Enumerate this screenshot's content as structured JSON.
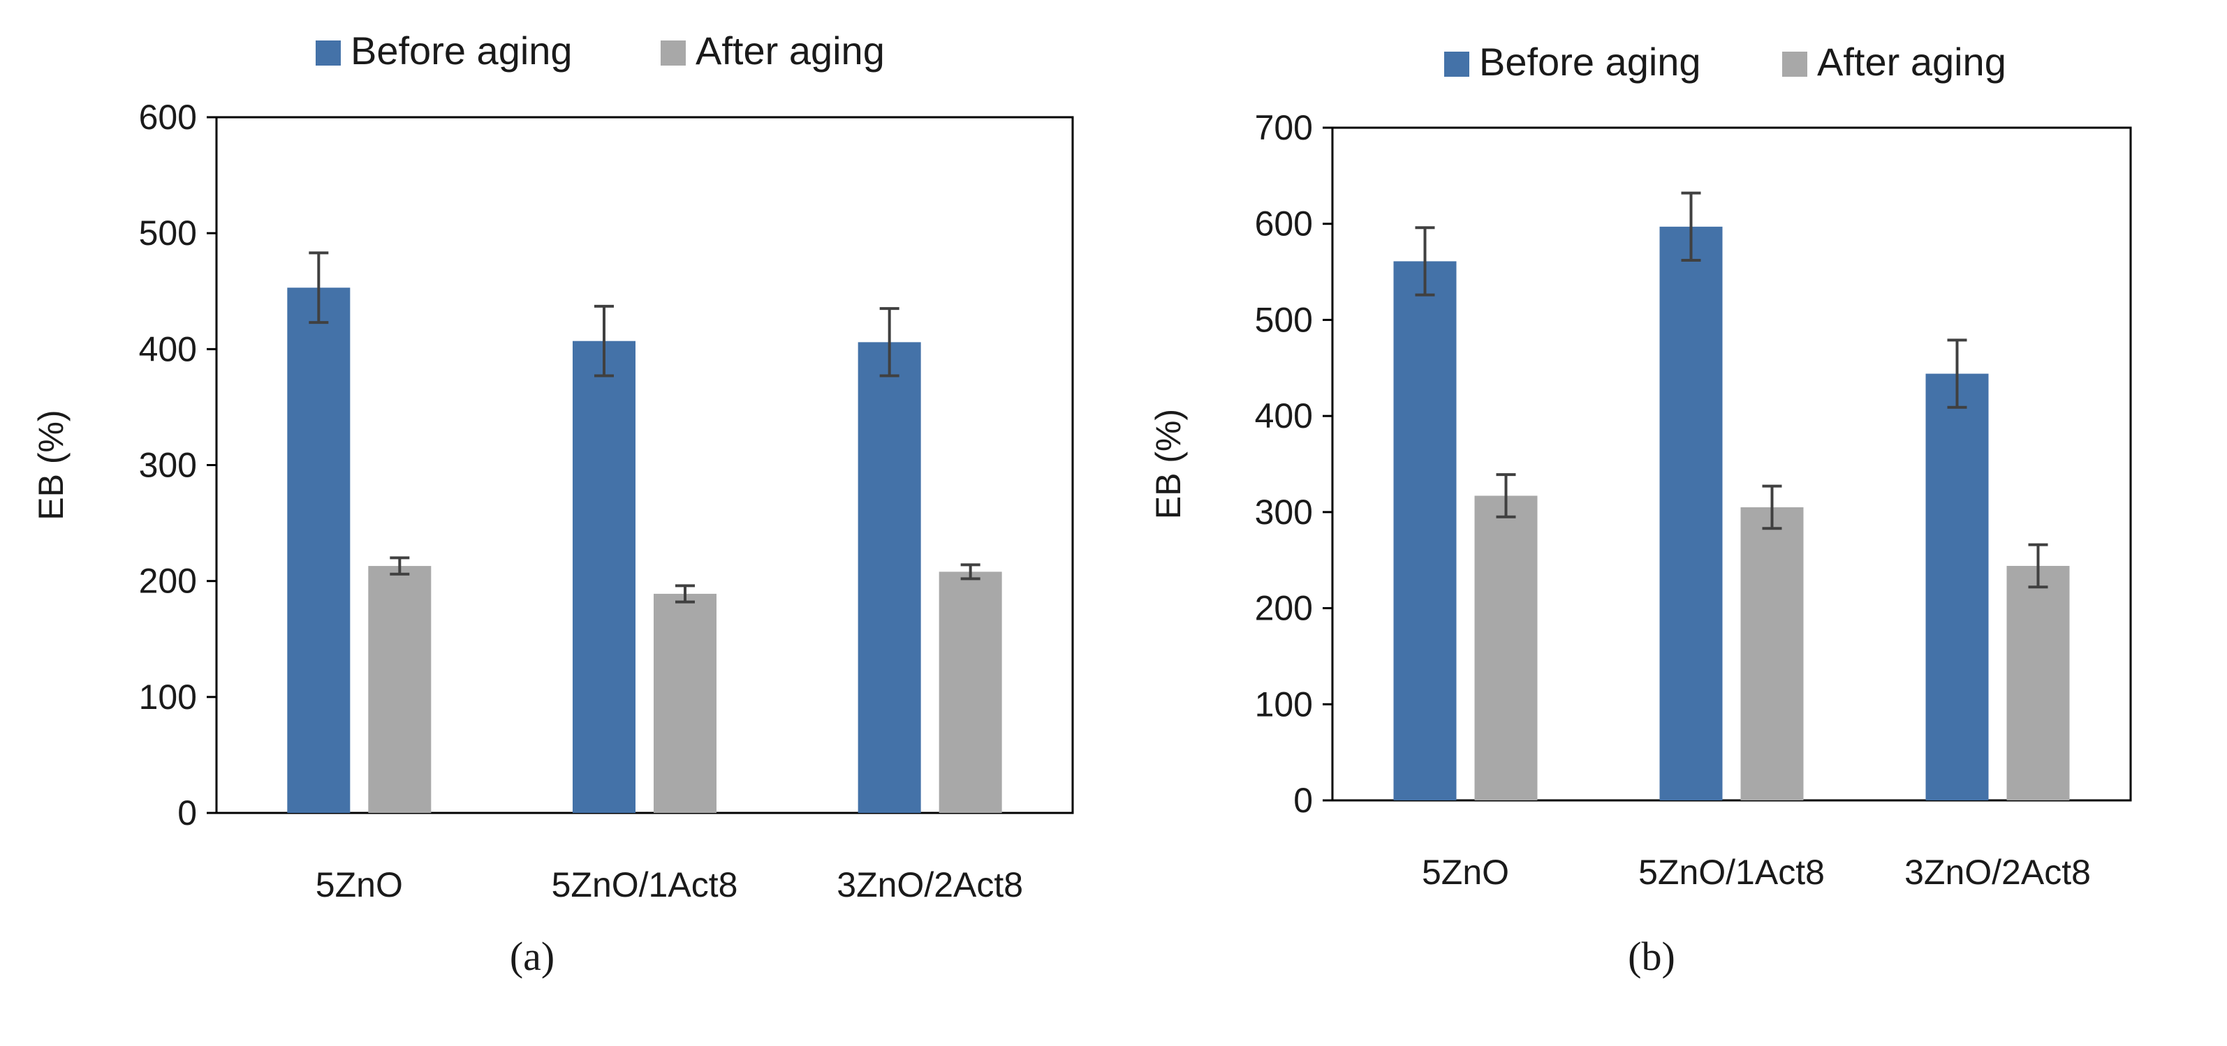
{
  "colors": {
    "before": "#4472A8",
    "after": "#A8A8A8",
    "error_bar": "#404040",
    "axis": "#000000"
  },
  "chart_data": [
    {
      "type": "bar",
      "panel_label": "(a)",
      "title": "",
      "xlabel": "",
      "ylabel": "EB (%)",
      "ylim": [
        0,
        600
      ],
      "yticks": [
        0,
        100,
        200,
        300,
        400,
        500,
        600
      ],
      "categories": [
        "5ZnO",
        "5ZnO/1Act8",
        "3ZnO/2Act8"
      ],
      "legend_position": "top",
      "series": [
        {
          "name": "Before aging",
          "values": [
            453,
            407,
            406
          ],
          "errors": [
            30,
            30,
            29
          ]
        },
        {
          "name": "After aging",
          "values": [
            213,
            189,
            208
          ],
          "errors": [
            7,
            7,
            6
          ]
        }
      ]
    },
    {
      "type": "bar",
      "panel_label": "(b)",
      "title": "",
      "xlabel": "",
      "ylabel": "EB (%)",
      "ylim": [
        0,
        700
      ],
      "yticks": [
        0,
        100,
        200,
        300,
        400,
        500,
        600,
        700
      ],
      "categories": [
        "5ZnO",
        "5ZnO/1Act8",
        "3ZnO/2Act8"
      ],
      "legend_position": "top",
      "series": [
        {
          "name": "Before aging",
          "values": [
            561,
            597,
            444
          ],
          "errors": [
            35,
            35,
            35
          ]
        },
        {
          "name": "After aging",
          "values": [
            317,
            305,
            244
          ],
          "errors": [
            22,
            22,
            22
          ]
        }
      ]
    }
  ]
}
